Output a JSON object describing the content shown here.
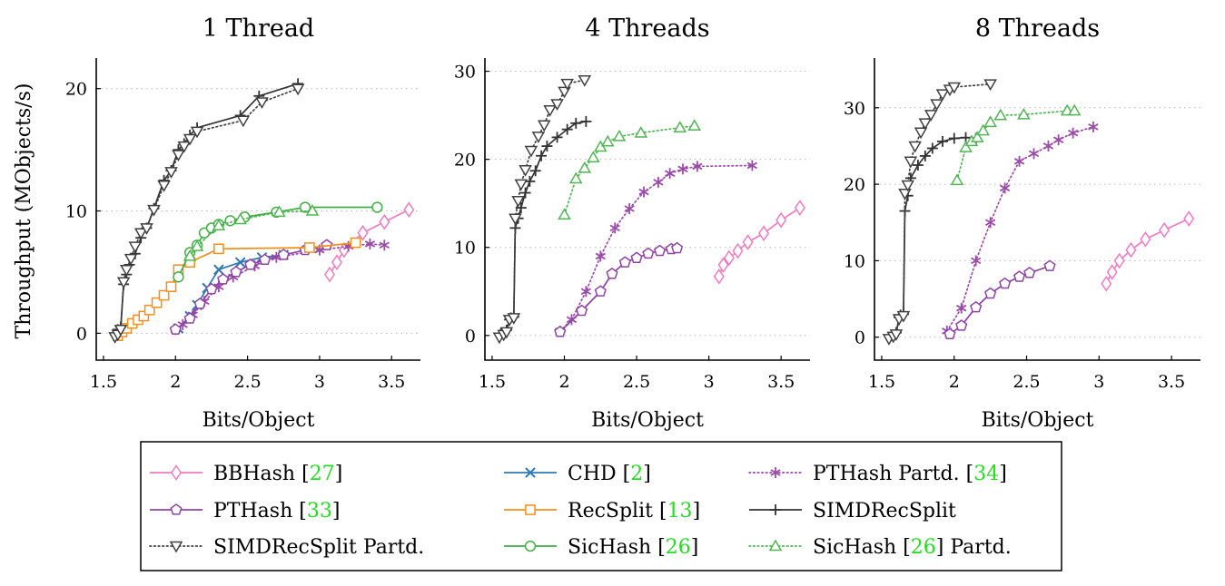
{
  "chart_data": [
    {
      "type": "line",
      "title": "1 Thread",
      "xlabel": "Bits/Object",
      "ylabel": "Throughput (MObjects/s)",
      "xlim": [
        1.45,
        3.7
      ],
      "ylim": [
        -2.2,
        22.5
      ],
      "xticks": [
        1.5,
        2,
        2.5,
        3,
        3.5
      ],
      "xtick_labels": [
        "1.5",
        "2",
        "2.5",
        "3",
        "3.5"
      ],
      "yticks": [
        0,
        10,
        20
      ],
      "ytick_labels": [
        "0",
        "10",
        "20"
      ],
      "grid": "horizontal-dotted",
      "series": [
        {
          "key": "bbhash",
          "x": [
            3.07,
            3.12,
            3.17,
            3.3,
            3.45,
            3.62
          ],
          "y": [
            4.8,
            5.8,
            6.8,
            8.2,
            9.1,
            10.1
          ]
        },
        {
          "key": "chd",
          "x": [
            2.02,
            2.1,
            2.15,
            2.22,
            2.3,
            2.45,
            2.6,
            2.75
          ],
          "y": [
            0.4,
            1.4,
            2.3,
            3.7,
            5.2,
            5.8,
            6.2,
            6.4
          ]
        },
        {
          "key": "ptpartd",
          "x": [
            2.0,
            2.05,
            2.12,
            2.2,
            2.3,
            2.4,
            2.55,
            2.7,
            3.0,
            3.2,
            3.35,
            3.45
          ],
          "y": [
            0.3,
            0.7,
            1.5,
            2.6,
            3.8,
            4.6,
            5.5,
            6.2,
            6.8,
            7.1,
            7.3,
            7.2
          ]
        },
        {
          "key": "pthash",
          "x": [
            2.0,
            2.1,
            2.17,
            2.25,
            2.33,
            2.42,
            2.52,
            2.62,
            2.75,
            2.9,
            3.05
          ],
          "y": [
            0.3,
            1.2,
            2.4,
            3.6,
            4.4,
            5.0,
            5.6,
            6.0,
            6.4,
            6.8,
            7.2
          ]
        },
        {
          "key": "recsplit",
          "x": [
            1.6,
            1.63,
            1.66,
            1.7,
            1.74,
            1.78,
            1.82,
            1.87,
            1.92,
            1.97,
            2.02,
            2.1,
            2.3,
            2.93,
            3.25
          ],
          "y": [
            -0.2,
            0.1,
            0.4,
            0.8,
            1.1,
            1.4,
            1.9,
            2.5,
            3.1,
            3.8,
            5.2,
            5.8,
            6.9,
            7.0,
            7.4
          ]
        },
        {
          "key": "simd",
          "x": [
            1.6,
            1.62,
            1.64,
            1.66,
            1.68,
            1.72,
            1.76,
            1.8,
            1.85,
            1.92,
            1.97,
            2.02,
            2.06,
            2.1,
            2.15,
            2.45,
            2.58,
            2.85
          ],
          "y": [
            0.3,
            0.5,
            4.0,
            4.8,
            5.6,
            6.5,
            7.8,
            8.6,
            10.2,
            12.5,
            13.3,
            15.0,
            15.5,
            16.2,
            16.8,
            17.8,
            19.4,
            20.4
          ]
        },
        {
          "key": "simdpartd",
          "x": [
            1.58,
            1.6,
            1.62,
            1.64,
            1.66,
            1.69,
            1.72,
            1.76,
            1.8,
            1.85,
            1.92,
            1.97,
            2.02,
            2.06,
            2.1,
            2.15,
            2.47,
            2.6,
            2.85
          ],
          "y": [
            -0.3,
            -0.1,
            0.3,
            4.2,
            5.2,
            6.1,
            7.1,
            8.2,
            8.6,
            10.1,
            12.1,
            13.2,
            14.6,
            15.3,
            15.9,
            16.5,
            17.4,
            18.9,
            20.0
          ]
        },
        {
          "key": "sichash",
          "x": [
            2.02,
            2.1,
            2.15,
            2.2,
            2.25,
            2.3,
            2.38,
            2.48,
            2.7,
            2.9,
            3.4
          ],
          "y": [
            4.6,
            6.6,
            7.2,
            8.2,
            8.6,
            8.9,
            9.2,
            9.5,
            9.9,
            10.3,
            10.3
          ]
        },
        {
          "key": "sicpartd",
          "x": [
            2.1,
            2.15,
            2.3,
            2.45,
            2.72,
            2.95
          ],
          "y": [
            6.3,
            7.1,
            8.8,
            9.3,
            9.9,
            10.0
          ]
        }
      ]
    },
    {
      "type": "line",
      "title": "4 Threads",
      "xlabel": "Bits/Object",
      "ylabel": "",
      "xlim": [
        1.45,
        3.7
      ],
      "ylim": [
        -2.8,
        31.5
      ],
      "xticks": [
        1.5,
        2,
        2.5,
        3,
        3.5
      ],
      "xtick_labels": [
        "1.5",
        "2",
        "2.5",
        "3",
        "3.5"
      ],
      "yticks": [
        0,
        10,
        20,
        30
      ],
      "ytick_labels": [
        "0",
        "10",
        "20",
        "30"
      ],
      "grid": "horizontal-dotted",
      "series": [
        {
          "key": "bbhash",
          "x": [
            3.07,
            3.1,
            3.14,
            3.2,
            3.27,
            3.38,
            3.5,
            3.63
          ],
          "y": [
            6.7,
            8.0,
            8.8,
            9.6,
            10.6,
            11.6,
            13.1,
            14.5
          ]
        },
        {
          "key": "ptpartd",
          "x": [
            1.97,
            2.05,
            2.15,
            2.25,
            2.35,
            2.45,
            2.55,
            2.65,
            2.73,
            2.82,
            2.92,
            3.3
          ],
          "y": [
            0.5,
            1.8,
            5.0,
            9.0,
            12.2,
            14.4,
            16.3,
            17.4,
            18.4,
            18.9,
            19.2,
            19.3
          ]
        },
        {
          "key": "pthash",
          "x": [
            1.97,
            2.12,
            2.25,
            2.33,
            2.42,
            2.5,
            2.58,
            2.66,
            2.74,
            2.78
          ],
          "y": [
            0.4,
            2.8,
            5.0,
            7.0,
            8.3,
            8.8,
            9.3,
            9.6,
            9.8,
            9.9
          ]
        },
        {
          "key": "simd",
          "x": [
            1.56,
            1.6,
            1.62,
            1.63,
            1.65,
            1.66,
            1.68,
            1.7,
            1.73,
            1.76,
            1.8,
            1.84,
            1.88,
            1.95,
            2.02,
            2.08,
            2.15
          ],
          "y": [
            0.2,
            0.6,
            1.8,
            2.0,
            2.1,
            12.2,
            13.3,
            14.5,
            16.2,
            17.5,
            18.7,
            20.4,
            21.5,
            22.5,
            23.4,
            24.1,
            24.3
          ]
        },
        {
          "key": "simdpartd",
          "x": [
            1.55,
            1.58,
            1.6,
            1.62,
            1.65,
            1.66,
            1.68,
            1.7,
            1.73,
            1.77,
            1.82,
            1.86,
            1.9,
            1.95,
            2.0,
            2.02,
            2.14
          ],
          "y": [
            -0.2,
            0.1,
            0.4,
            1.8,
            2.0,
            13.3,
            15.3,
            17.2,
            18.8,
            21.0,
            22.6,
            23.9,
            25.6,
            26.3,
            27.7,
            28.6,
            29.0
          ]
        },
        {
          "key": "sicpartd",
          "x": [
            2.0,
            2.08,
            2.14,
            2.2,
            2.25,
            2.3,
            2.38,
            2.53,
            2.8,
            2.9
          ],
          "y": [
            13.7,
            17.8,
            19.0,
            20.2,
            21.4,
            22.0,
            22.6,
            23.0,
            23.6,
            23.8
          ]
        }
      ]
    },
    {
      "type": "line",
      "title": "8 Threads",
      "xlabel": "Bits/Object",
      "ylabel": "",
      "xlim": [
        1.45,
        3.7
      ],
      "ylim": [
        -3.0,
        36.5
      ],
      "xticks": [
        1.5,
        2,
        2.5,
        3,
        3.5
      ],
      "xtick_labels": [
        "1.5",
        "2",
        "2.5",
        "3",
        "3.5"
      ],
      "yticks": [
        0,
        10,
        20,
        30
      ],
      "ytick_labels": [
        "0",
        "10",
        "20",
        "30"
      ],
      "grid": "horizontal-dotted",
      "series": [
        {
          "key": "bbhash",
          "x": [
            3.05,
            3.09,
            3.14,
            3.22,
            3.32,
            3.45,
            3.62
          ],
          "y": [
            7.0,
            8.5,
            10.0,
            11.4,
            12.8,
            14.0,
            15.5
          ]
        },
        {
          "key": "ptpartd",
          "x": [
            1.95,
            2.05,
            2.15,
            2.25,
            2.35,
            2.45,
            2.55,
            2.65,
            2.72,
            2.82,
            2.96
          ],
          "y": [
            0.8,
            3.8,
            10.0,
            15.0,
            19.5,
            23.0,
            24.0,
            25.0,
            25.8,
            26.7,
            27.5
          ]
        },
        {
          "key": "pthash",
          "x": [
            1.97,
            2.05,
            2.15,
            2.25,
            2.35,
            2.45,
            2.52,
            2.66
          ],
          "y": [
            0.4,
            1.5,
            3.9,
            5.7,
            7.0,
            7.9,
            8.4,
            9.3
          ]
        },
        {
          "key": "simd",
          "x": [
            1.57,
            1.6,
            1.62,
            1.63,
            1.65,
            1.66,
            1.68,
            1.7,
            1.75,
            1.8,
            1.85,
            1.92,
            2.0,
            2.08,
            2.15
          ],
          "y": [
            0.2,
            0.6,
            2.6,
            2.9,
            3.0,
            16.5,
            18.5,
            20.8,
            22.5,
            23.7,
            24.7,
            25.6,
            26.0,
            26.1,
            26.0
          ]
        },
        {
          "key": "simdpartd",
          "x": [
            1.55,
            1.58,
            1.6,
            1.62,
            1.65,
            1.66,
            1.68,
            1.7,
            1.73,
            1.77,
            1.8,
            1.84,
            1.88,
            1.92,
            1.97,
            2.0,
            2.25
          ],
          "y": [
            -0.2,
            0.1,
            0.4,
            2.4,
            2.8,
            18.8,
            19.9,
            23.0,
            25.0,
            26.8,
            28.0,
            29.1,
            30.5,
            31.8,
            32.4,
            32.7,
            33.1
          ]
        },
        {
          "key": "sicpartd",
          "x": [
            2.02,
            2.08,
            2.12,
            2.16,
            2.2,
            2.25,
            2.32,
            2.48,
            2.78,
            2.83
          ],
          "y": [
            20.5,
            24.8,
            25.6,
            26.1,
            27.0,
            28.1,
            29.0,
            29.1,
            29.6,
            29.6
          ]
        }
      ]
    }
  ],
  "legend": {
    "placement": "bottom",
    "entries": [
      {
        "key": "bbhash",
        "label": "BBHash",
        "cite": "27"
      },
      {
        "key": "chd",
        "label": "CHD",
        "cite": "2"
      },
      {
        "key": "ptpartd",
        "label": "PTHash Partd.",
        "cite": "34"
      },
      {
        "key": "pthash",
        "label": "PTHash",
        "cite": "33"
      },
      {
        "key": "recsplit",
        "label": "RecSplit",
        "cite": "13"
      },
      {
        "key": "simd",
        "label": "SIMDRecSplit"
      },
      {
        "key": "simdpartd",
        "label": "SIMDRecSplit Partd."
      },
      {
        "key": "sichash",
        "label": "SicHash",
        "cite": "26"
      },
      {
        "key": "sicpartd",
        "label": "SicHash",
        "cite": "26",
        "suffix": "Partd."
      }
    ]
  },
  "series_styles": {
    "bbhash": {
      "color": "#f07cc0",
      "marker": "diamond",
      "dash": "solid"
    },
    "chd": {
      "color": "#2e79b5",
      "marker": "x",
      "dash": "solid"
    },
    "ptpartd": {
      "color": "#9b4ba8",
      "marker": "asterisk",
      "dash": "dotted"
    },
    "pthash": {
      "color": "#8e44a4",
      "marker": "pentagon",
      "dash": "solid"
    },
    "recsplit": {
      "color": "#f39019",
      "marker": "square",
      "dash": "solid"
    },
    "simd": {
      "color": "#333333",
      "marker": "plus",
      "dash": "solid"
    },
    "simdpartd": {
      "color": "#404040",
      "marker": "triangle-down",
      "dash": "dotted"
    },
    "sichash": {
      "color": "#43ad46",
      "marker": "circle",
      "dash": "solid"
    },
    "sicpartd": {
      "color": "#52b555",
      "marker": "triangle-up",
      "dash": "dotted"
    }
  }
}
